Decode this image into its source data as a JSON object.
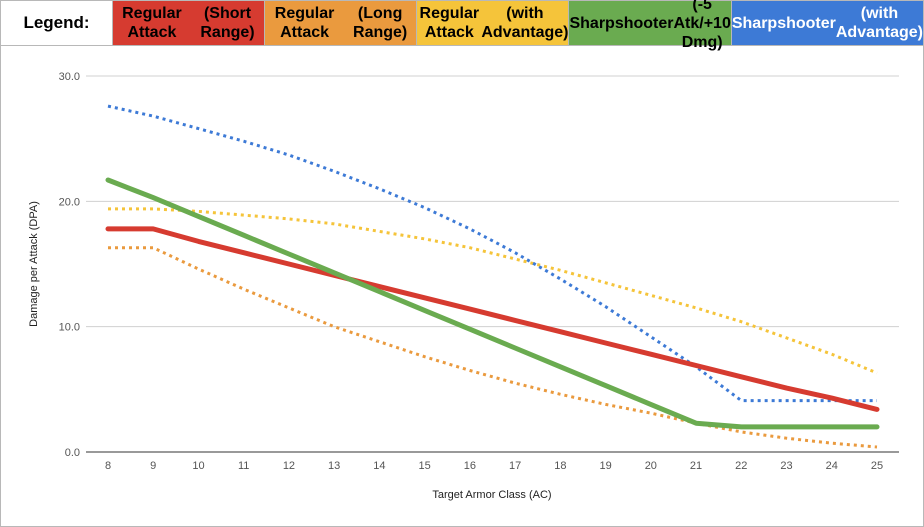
{
  "legend": {
    "title": "Legend:",
    "items": [
      {
        "line1": "Regular Attack",
        "line2": "(Short Range)",
        "bg": "#d63b30",
        "text_color": "dark"
      },
      {
        "line1": "Regular Attack",
        "line2": "(Long Range)",
        "bg": "#ea9a3e",
        "text_color": "dark"
      },
      {
        "line1": "Regular Attack",
        "line2": "(with Advantage)",
        "bg": "#f5c43a",
        "text_color": "dark"
      },
      {
        "line1": "Sharpshooter",
        "line2": "(-5 Atk/+10 Dmg)",
        "bg": "#6aab50",
        "text_color": "dark"
      },
      {
        "line1": "Sharpshooter",
        "line2": "(with Advantage)",
        "bg": "#3d7ad6",
        "text_color": "light"
      }
    ]
  },
  "chart_data": {
    "type": "line",
    "title": "",
    "xlabel": "Target Armor Class (AC)",
    "ylabel": "Damage per Attack (DPA)",
    "x": [
      8,
      9,
      10,
      11,
      12,
      13,
      14,
      15,
      16,
      17,
      18,
      19,
      20,
      21,
      22,
      23,
      24,
      25
    ],
    "xlim": [
      8,
      25
    ],
    "ylim": [
      0,
      30
    ],
    "yticks": [
      "0.0",
      "10.0",
      "20.0",
      "30.0"
    ],
    "grid": "horizontal",
    "series": [
      {
        "name": "Regular Attack (Short Range)",
        "color": "#d63b30",
        "style": "solid",
        "values": [
          17.8,
          17.8,
          16.8,
          15.9,
          15.0,
          14.1,
          13.2,
          12.3,
          11.4,
          10.5,
          9.6,
          8.7,
          7.8,
          6.9,
          6.0,
          5.1,
          4.3,
          3.4
        ]
      },
      {
        "name": "Regular Attack (Long Range)",
        "color": "#ea9a3e",
        "style": "dotted",
        "values": [
          16.3,
          16.3,
          14.6,
          13.0,
          11.5,
          10.0,
          8.8,
          7.6,
          6.5,
          5.5,
          4.6,
          3.8,
          3.1,
          2.3,
          1.6,
          1.1,
          0.7,
          0.4
        ]
      },
      {
        "name": "Regular Attack (with Advantage)",
        "color": "#f5c43a",
        "style": "dotted",
        "values": [
          19.4,
          19.4,
          19.2,
          18.9,
          18.6,
          18.2,
          17.6,
          17.0,
          16.3,
          15.4,
          14.5,
          13.5,
          12.5,
          11.5,
          10.4,
          9.1,
          7.8,
          6.3
        ]
      },
      {
        "name": "Sharpshooter (-5 Atk/+10 Dmg)",
        "color": "#6aab50",
        "style": "solid",
        "values": [
          21.7,
          20.3,
          18.8,
          17.3,
          15.8,
          14.3,
          12.8,
          11.3,
          9.8,
          8.3,
          6.8,
          5.3,
          3.8,
          2.3,
          2.0,
          2.0,
          2.0,
          2.0
        ]
      },
      {
        "name": "Sharpshooter (with Advantage)",
        "color": "#3d7ad6",
        "style": "dotted",
        "values": [
          27.6,
          26.8,
          25.8,
          24.8,
          23.7,
          22.4,
          21.0,
          19.5,
          17.8,
          15.9,
          13.8,
          11.6,
          9.2,
          6.8,
          4.1,
          4.1,
          4.1,
          4.1
        ]
      }
    ]
  }
}
